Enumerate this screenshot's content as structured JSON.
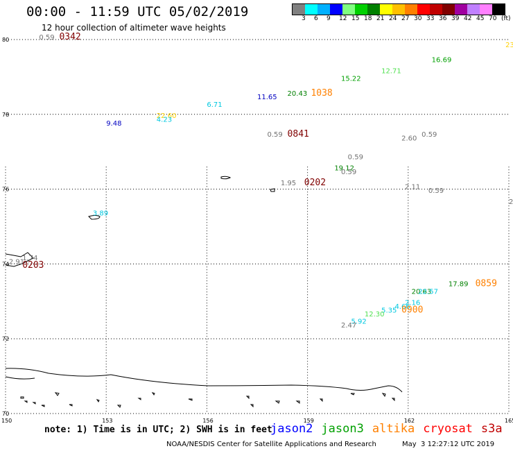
{
  "header": {
    "title": "00:00 - 11:59 UTC 05/02/2019",
    "subtitle": "12 hour collection of altimeter wave heights"
  },
  "legend": {
    "colors": [
      "#808080",
      "#00ffff",
      "#00b0ff",
      "#0000ff",
      "#80ff80",
      "#00d000",
      "#008000",
      "#ffff00",
      "#ffc000",
      "#ff8000",
      "#ff0000",
      "#c00000",
      "#800000",
      "#a000a0",
      "#c080ff",
      "#ff80ff",
      "#000000"
    ],
    "ticks": [
      "3",
      "6",
      "9",
      "12",
      "15",
      "18",
      "21",
      "24",
      "27",
      "30",
      "33",
      "36",
      "39",
      "42",
      "45",
      "70",
      "(ft)"
    ]
  },
  "map": {
    "lat_labels": [
      "80",
      "78",
      "76",
      "74",
      "72",
      "70"
    ],
    "lon_labels": [
      "150",
      "153",
      "156",
      "159",
      "162",
      "165"
    ],
    "observations": [
      {
        "text": "0.59",
        "color": "#707070",
        "lon": 151.0,
        "lat": 80.0
      },
      {
        "text": "0342",
        "color": "#800000",
        "lon": 151.6,
        "lat": 80.0,
        "time": true
      },
      {
        "text": "23.",
        "color": "#ffd000",
        "lon": 164.9,
        "lat": 79.8
      },
      {
        "text": "16.69",
        "color": "#00a000",
        "lon": 162.7,
        "lat": 79.4
      },
      {
        "text": "12.71",
        "color": "#50e050",
        "lon": 161.2,
        "lat": 79.1
      },
      {
        "text": "15.22",
        "color": "#00a000",
        "lon": 160.0,
        "lat": 78.9
      },
      {
        "text": "20.43",
        "color": "#008000",
        "lon": 158.4,
        "lat": 78.5
      },
      {
        "text": "1038",
        "color": "#ff8000",
        "lon": 159.1,
        "lat": 78.5,
        "time": true
      },
      {
        "text": "11.65",
        "color": "#0000c0",
        "lon": 157.5,
        "lat": 78.4
      },
      {
        "text": "6.71",
        "color": "#00c8e0",
        "lon": 156.0,
        "lat": 78.2
      },
      {
        "text": "22.60",
        "color": "#ffd000",
        "lon": 154.5,
        "lat": 77.9
      },
      {
        "text": "4.23",
        "color": "#00c8e0",
        "lon": 154.5,
        "lat": 77.8
      },
      {
        "text": "9.48",
        "color": "#0000c0",
        "lon": 153.0,
        "lat": 77.7
      },
      {
        "text": "0.59",
        "color": "#707070",
        "lon": 157.8,
        "lat": 77.4
      },
      {
        "text": "0841",
        "color": "#800000",
        "lon": 158.4,
        "lat": 77.4,
        "time": true
      },
      {
        "text": "0.59",
        "color": "#707070",
        "lon": 162.4,
        "lat": 77.4
      },
      {
        "text": "2.60",
        "color": "#707070",
        "lon": 161.8,
        "lat": 77.3
      },
      {
        "text": "0.59",
        "color": "#707070",
        "lon": 160.2,
        "lat": 76.8
      },
      {
        "text": "19.12",
        "color": "#008000",
        "lon": 159.8,
        "lat": 76.5
      },
      {
        "text": "0.59",
        "color": "#707070",
        "lon": 160.0,
        "lat": 76.4
      },
      {
        "text": "1.95",
        "color": "#707070",
        "lon": 158.2,
        "lat": 76.1
      },
      {
        "text": "0202",
        "color": "#800000",
        "lon": 158.9,
        "lat": 76.1,
        "time": true
      },
      {
        "text": "2.11",
        "color": "#707070",
        "lon": 161.9,
        "lat": 76.0
      },
      {
        "text": "0.59",
        "color": "#707070",
        "lon": 162.6,
        "lat": 75.9
      },
      {
        "text": "2",
        "color": "#707070",
        "lon": 165.0,
        "lat": 75.6
      },
      {
        "text": "3.89",
        "color": "#00c8e0",
        "lon": 152.6,
        "lat": 75.3
      },
      {
        "text": "1.74",
        "color": "#707070",
        "lon": 150.5,
        "lat": 74.1
      },
      {
        "text": "2.91",
        "color": "#707070",
        "lon": 150.1,
        "lat": 74.0
      },
      {
        "text": "0203",
        "color": "#800000",
        "lon": 150.5,
        "lat": 73.9,
        "time": true
      },
      {
        "text": "17.89",
        "color": "#008000",
        "lon": 163.2,
        "lat": 73.4
      },
      {
        "text": "0859",
        "color": "#ff8000",
        "lon": 164.0,
        "lat": 73.4,
        "time": true
      },
      {
        "text": "20.63",
        "color": "#008000",
        "lon": 162.1,
        "lat": 73.2
      },
      {
        "text": "22.57",
        "color": "#00c8e0",
        "lon": 162.3,
        "lat": 73.2
      },
      {
        "text": "2.16",
        "color": "#00c8e0",
        "lon": 161.9,
        "lat": 72.9
      },
      {
        "text": "4.66",
        "color": "#00c8e0",
        "lon": 161.6,
        "lat": 72.8
      },
      {
        "text": "5.35",
        "color": "#00c8e0",
        "lon": 161.2,
        "lat": 72.7
      },
      {
        "text": "0900",
        "color": "#ff8000",
        "lon": 161.8,
        "lat": 72.7,
        "time": true
      },
      {
        "text": "12.30",
        "color": "#50e050",
        "lon": 160.7,
        "lat": 72.6
      },
      {
        "text": "5.92",
        "color": "#00c8e0",
        "lon": 160.3,
        "lat": 72.4
      },
      {
        "text": "2.47",
        "color": "#707070",
        "lon": 160.0,
        "lat": 72.3
      }
    ]
  },
  "note": "note: 1) Time is in UTC; 2) SWH is in feet",
  "satellites": [
    {
      "name": "jason2",
      "color": "#0000ff"
    },
    {
      "name": "jason3",
      "color": "#00a000"
    },
    {
      "name": "altika",
      "color": "#ff8000"
    },
    {
      "name": "cryosat",
      "color": "#ff0000"
    },
    {
      "name": "s3a",
      "color": "#c00000"
    }
  ],
  "footer": {
    "credit": "NOAA/NESDIS Center for Satellite Applications and Research",
    "timestamp": "May  3 12:27:12 UTC 2019"
  }
}
